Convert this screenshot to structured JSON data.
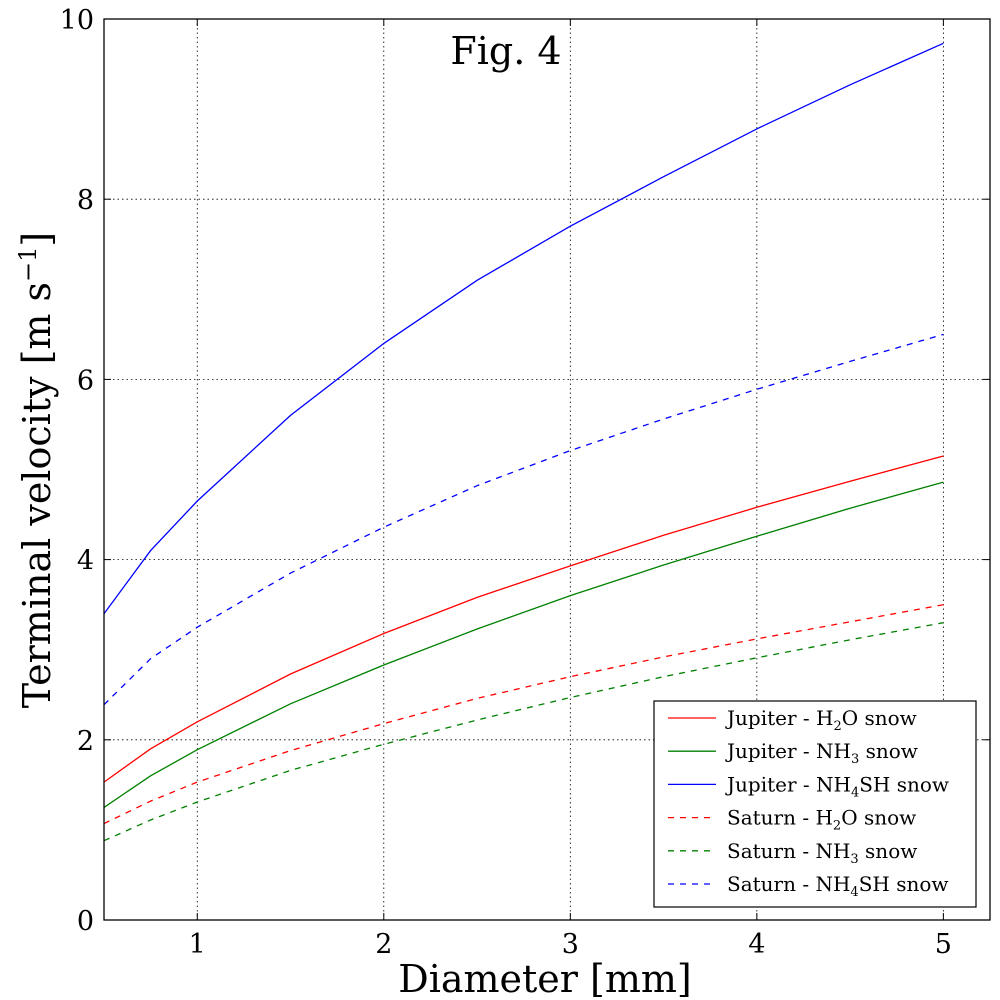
{
  "chart_data": {
    "type": "line",
    "title": "Fig. 4",
    "xlabel": "Diameter [mm]",
    "ylabel_main": "Terminal velocity [m s",
    "ylabel_sup": "−1",
    "ylabel_end": "]",
    "xlim": [
      0.5,
      5.25
    ],
    "ylim": [
      0,
      10
    ],
    "xticks": [
      1,
      2,
      3,
      4,
      5
    ],
    "yticks": [
      0,
      2,
      4,
      6,
      8,
      10
    ],
    "grid": true,
    "legend_position": "lower-right",
    "series": [
      {
        "id": "jup-h2o",
        "legend": {
          "prefix": "Jupiter - H",
          "sub": "2",
          "suffix": "O snow"
        },
        "color": "#ff0000",
        "dashed": false,
        "x": [
          0.5,
          0.75,
          1,
          1.5,
          2,
          2.5,
          3,
          3.5,
          4,
          4.5,
          5
        ],
        "y": [
          1.53,
          1.9,
          2.2,
          2.73,
          3.18,
          3.58,
          3.93,
          4.27,
          4.58,
          4.87,
          5.15
        ]
      },
      {
        "id": "jup-nh3",
        "legend": {
          "prefix": "Jupiter - NH",
          "sub": "3",
          "suffix": " snow"
        },
        "color": "#008000",
        "dashed": false,
        "x": [
          0.5,
          0.75,
          1,
          1.5,
          2,
          2.5,
          3,
          3.5,
          4,
          4.5,
          5
        ],
        "y": [
          1.25,
          1.6,
          1.89,
          2.4,
          2.83,
          3.23,
          3.6,
          3.94,
          4.26,
          4.57,
          4.86
        ]
      },
      {
        "id": "jup-nh4sh",
        "legend": {
          "prefix": "Jupiter - NH",
          "sub": "4",
          "suffix": "SH snow"
        },
        "color": "#0000ff",
        "dashed": false,
        "x": [
          0.5,
          0.75,
          1,
          1.5,
          2,
          2.5,
          3,
          3.5,
          4,
          4.5,
          5
        ],
        "y": [
          3.4,
          4.1,
          4.65,
          5.6,
          6.4,
          7.1,
          7.7,
          8.25,
          8.78,
          9.27,
          9.73
        ]
      },
      {
        "id": "sat-h2o",
        "legend": {
          "prefix": "Saturn - H",
          "sub": "2",
          "suffix": "O snow"
        },
        "color": "#ff0000",
        "dashed": true,
        "x": [
          0.5,
          0.75,
          1,
          1.5,
          2,
          2.5,
          3,
          3.5,
          4,
          4.5,
          5
        ],
        "y": [
          1.07,
          1.32,
          1.53,
          1.88,
          2.18,
          2.46,
          2.7,
          2.92,
          3.12,
          3.31,
          3.5
        ]
      },
      {
        "id": "sat-nh3",
        "legend": {
          "prefix": "Saturn - NH",
          "sub": "3",
          "suffix": " snow"
        },
        "color": "#008000",
        "dashed": true,
        "x": [
          0.5,
          0.75,
          1,
          1.5,
          2,
          2.5,
          3,
          3.5,
          4,
          4.5,
          5
        ],
        "y": [
          0.88,
          1.11,
          1.31,
          1.66,
          1.95,
          2.22,
          2.47,
          2.7,
          2.91,
          3.11,
          3.3
        ]
      },
      {
        "id": "sat-nh4sh",
        "legend": {
          "prefix": "Saturn - NH",
          "sub": "4",
          "suffix": "SH snow"
        },
        "color": "#0000ff",
        "dashed": true,
        "x": [
          0.5,
          0.75,
          1,
          1.5,
          2,
          2.5,
          3,
          3.5,
          4,
          4.5,
          5
        ],
        "y": [
          2.39,
          2.9,
          3.25,
          3.85,
          4.36,
          4.82,
          5.21,
          5.56,
          5.89,
          6.2,
          6.5
        ]
      }
    ]
  }
}
